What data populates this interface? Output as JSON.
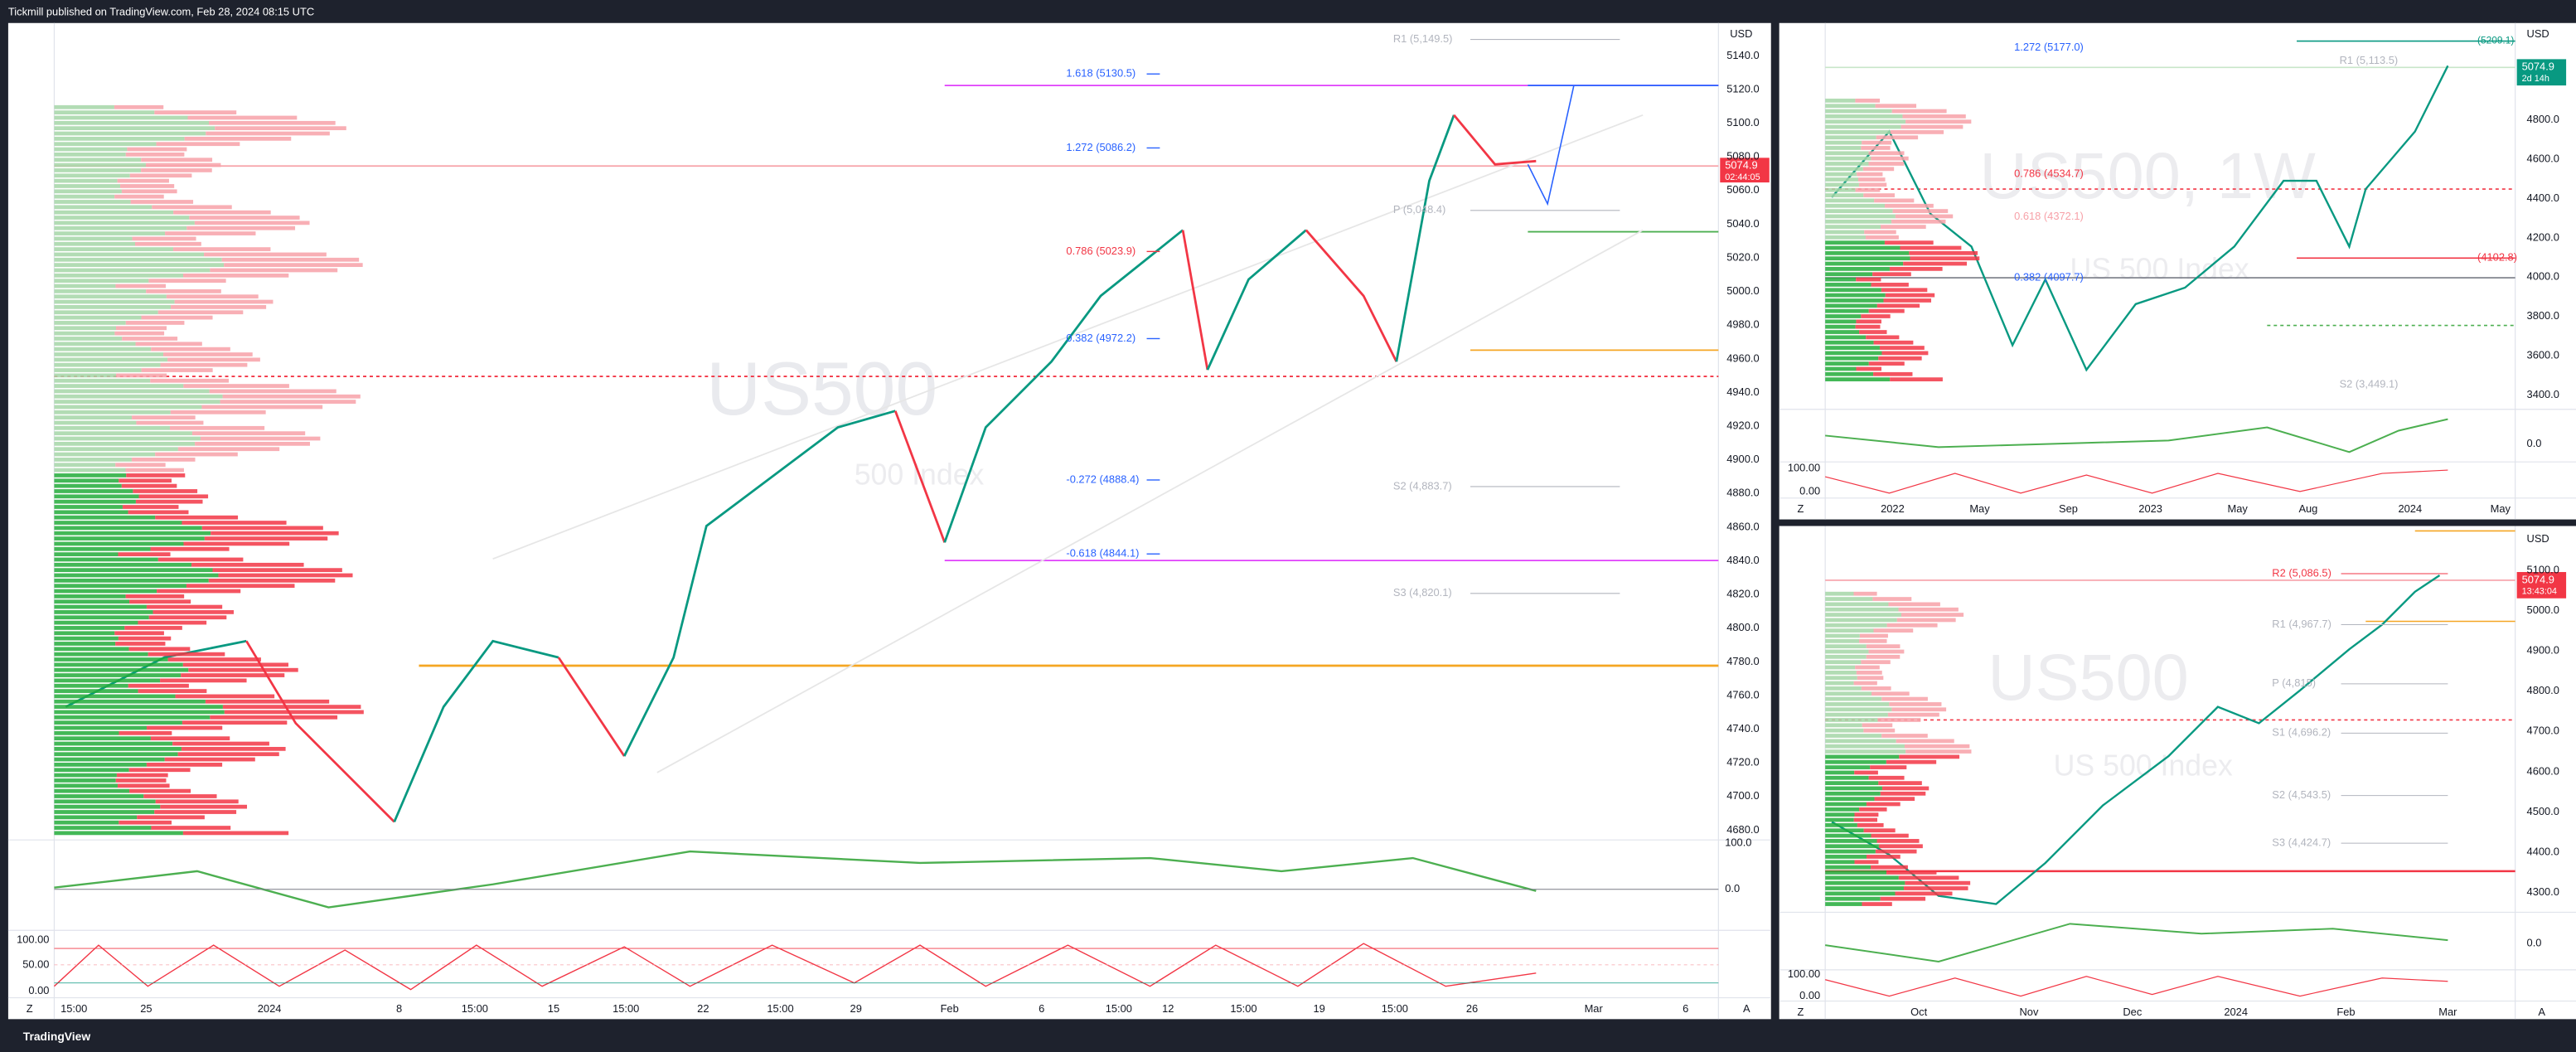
{
  "header": {
    "publisher": "Tickmill published on TradingView.com, Feb 28, 2024 08:15 UTC"
  },
  "footer": {
    "brand": "TradingView"
  },
  "main_chart": {
    "watermark": "US500",
    "watermark_sub": "500 Index",
    "currency": "USD",
    "price_labels": [
      "5140.0",
      "5120.0",
      "5100.0",
      "5080.0",
      "5060.0",
      "5040.0",
      "5020.0",
      "5000.0",
      "4980.0",
      "4960.0",
      "4940.0",
      "4920.0",
      "4900.0",
      "4880.0",
      "4860.0",
      "4840.0",
      "4820.0",
      "4800.0",
      "4780.0",
      "4760.0",
      "4740.0",
      "4720.0",
      "4700.0",
      "4680.0"
    ],
    "price_tag": "5074.9",
    "countdown": "02:44:05",
    "fib_labels": [
      "1.618 (5130.5)",
      "1.272 (5086.2)",
      "0.786 (5023.9)",
      "0.382 (4972.2)",
      "-0.272 (4888.4)",
      "-0.618 (4844.1)"
    ],
    "pivot_labels": [
      "R1 (5,149.5)",
      "P (5,048.4)",
      "S2 (4,883.7)",
      "S3 (4,820.1)"
    ],
    "osc1_labels": [
      "100.0",
      "0.0"
    ],
    "osc2_labels": [
      "100.00",
      "50.00",
      "0.00"
    ],
    "time_labels": [
      "15:00",
      "25",
      "2024",
      "8",
      "15:00",
      "15",
      "15:00",
      "22",
      "15:00",
      "29",
      "Feb",
      "6",
      "15:00",
      "12",
      "15:00",
      "19",
      "15:00",
      "26",
      "Mar",
      "6"
    ],
    "corner_left": "Z",
    "corner_right": "A"
  },
  "weekly_chart": {
    "watermark": "US500, 1W",
    "watermark_sub": "US 500 Index",
    "currency": "USD",
    "price_labels": [
      "4800.0",
      "4600.0",
      "4400.0",
      "4200.0",
      "4000.0",
      "3800.0",
      "3600.0",
      "3400.0"
    ],
    "price_tag": "5074.9",
    "countdown": "2d 14h",
    "top_label": "(5209.1)",
    "fib_labels": [
      "1.272 (5177.0)",
      "R1 (5,113.5)",
      "0.786 (4534.7)",
      "0.618 (4372.1)",
      "0.382 (4097.7)",
      "(4102.8)",
      "S2 (3,449.1)"
    ],
    "osc_labels": [
      "0.0",
      "100.00",
      "0.00"
    ],
    "time_labels": [
      "2022",
      "May",
      "Sep",
      "2023",
      "May",
      "Aug",
      "2024",
      "May"
    ],
    "corner_left": "Z"
  },
  "daily_chart": {
    "watermark": "US500",
    "watermark_sub": "US 500 Index",
    "currency": "USD",
    "price_labels": [
      "5100.0",
      "5000.0",
      "4900.0",
      "4800.0",
      "4700.0",
      "4600.0",
      "4500.0",
      "4400.0",
      "4300.0"
    ],
    "price_tag": "5074.9",
    "countdown": "13:43:04",
    "pivot_labels": [
      "R2 (5,086.5)",
      "R1 (4,967.7)",
      "P (4,815)",
      "S1 (4,696.2)",
      "S2 (4,543.5)",
      "S3 (4,424.7)"
    ],
    "osc_labels": [
      "0.0",
      "100.00",
      "0.00"
    ],
    "time_labels": [
      "Oct",
      "Nov",
      "Dec",
      "2024",
      "Feb",
      "Mar"
    ],
    "corner_left": "Z",
    "corner_right": "A"
  }
}
